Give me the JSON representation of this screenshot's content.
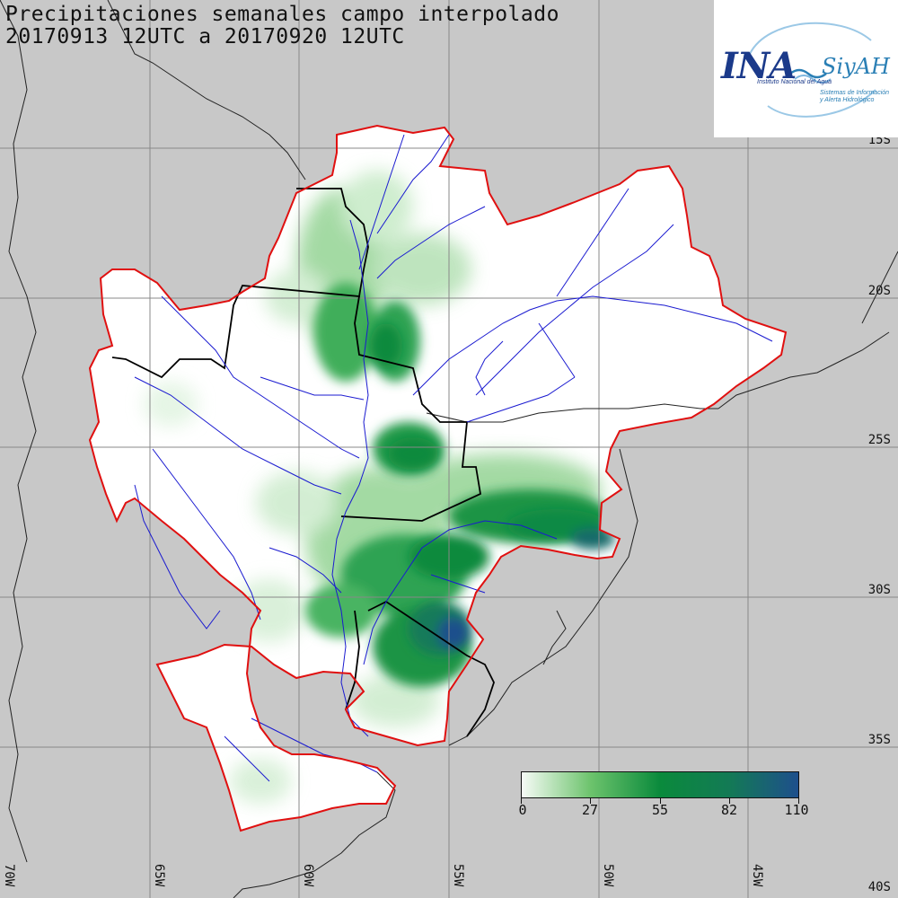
{
  "title": {
    "line1": "Precipitaciones semanales campo interpolado",
    "line2": "20170913 12UTC a 20170920 12UTC"
  },
  "logo": {
    "ina": "INA",
    "siyah": "SiyAH",
    "sub1": "Instituto Nacional del Agua",
    "sub2": "Sistemas de Información y Alerta Hidrológico"
  },
  "lat_labels": [
    "15S",
    "20S",
    "25S",
    "30S",
    "35S",
    "40S"
  ],
  "lon_labels": [
    "70W",
    "65W",
    "60W",
    "55W",
    "50W",
    "45W"
  ],
  "legend": {
    "ticks": [
      "0",
      "27",
      "55",
      "82",
      "110"
    ],
    "colors": [
      "#f6fbf6",
      "#6cc36c",
      "#0a8a3c",
      "#137a55",
      "#1e4f8c"
    ]
  },
  "colors": {
    "background": "#c8c8c8",
    "basin_outline": "#e01010",
    "rivers": "#1a1ad0",
    "borders": "#111111"
  }
}
